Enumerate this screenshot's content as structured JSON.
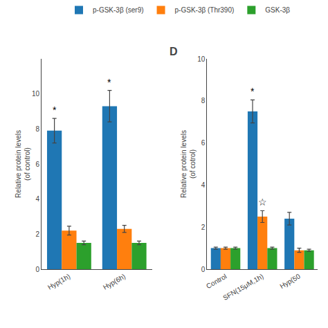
{
  "chart_data": [
    {
      "type": "bar",
      "categories": [
        "Hyp(1h)",
        "Hyp(6h)"
      ],
      "series": [
        {
          "name": "p-GSK-3β (ser9)",
          "color": "#1f77b4",
          "values": [
            7.9,
            9.3
          ],
          "errors": [
            0.7,
            0.9
          ]
        },
        {
          "name": "p-GSK-3β (Thr390)",
          "color": "#ff7f0e",
          "values": [
            2.2,
            2.3
          ],
          "errors": [
            0.25,
            0.2
          ]
        },
        {
          "name": "GSK-3β",
          "color": "#2ca02c",
          "values": [
            1.5,
            1.5
          ],
          "errors": [
            0.1,
            0.1
          ]
        }
      ],
      "ylabel": "Relative protein levels\n(of control)",
      "ylim": [
        0,
        12
      ],
      "yticks": [
        0,
        2,
        4,
        6,
        8,
        10
      ],
      "grid": false,
      "legend": "top",
      "annotations": [
        {
          "text": "*",
          "category": "Hyp(1h)",
          "series": "p-GSK-3β (ser9)"
        },
        {
          "text": "*",
          "category": "Hyp(6h)",
          "series": "p-GSK-3β (ser9)"
        }
      ]
    },
    {
      "type": "bar",
      "title": "D",
      "categories": [
        "Control",
        "SFN(15μM,1h)",
        "Hyp(50"
      ],
      "series": [
        {
          "name": "p-GSK-3β (ser9)",
          "color": "#1f77b4",
          "values": [
            1.0,
            7.5,
            2.4
          ],
          "errors": [
            0.05,
            0.55,
            0.3
          ]
        },
        {
          "name": "p-GSK-3β (Thr390)",
          "color": "#ff7f0e",
          "values": [
            1.0,
            2.5,
            0.9
          ],
          "errors": [
            0.05,
            0.28,
            0.1
          ]
        },
        {
          "name": "GSK-3β",
          "color": "#2ca02c",
          "values": [
            1.0,
            1.0,
            0.9
          ],
          "errors": [
            0.05,
            0.05,
            0.05
          ]
        }
      ],
      "ylabel": "Relative protein levels\n(of cotrol)",
      "ylim": [
        0,
        10
      ],
      "yticks": [
        0,
        2,
        4,
        6,
        8,
        10
      ],
      "grid": false,
      "annotations": [
        {
          "text": "*",
          "category": "SFN(15μM,1h)",
          "series": "p-GSK-3β (ser9)"
        },
        {
          "text": "☆",
          "category": "SFN(15μM,1h)",
          "series": "p-GSK-3β (Thr390)"
        }
      ]
    }
  ]
}
